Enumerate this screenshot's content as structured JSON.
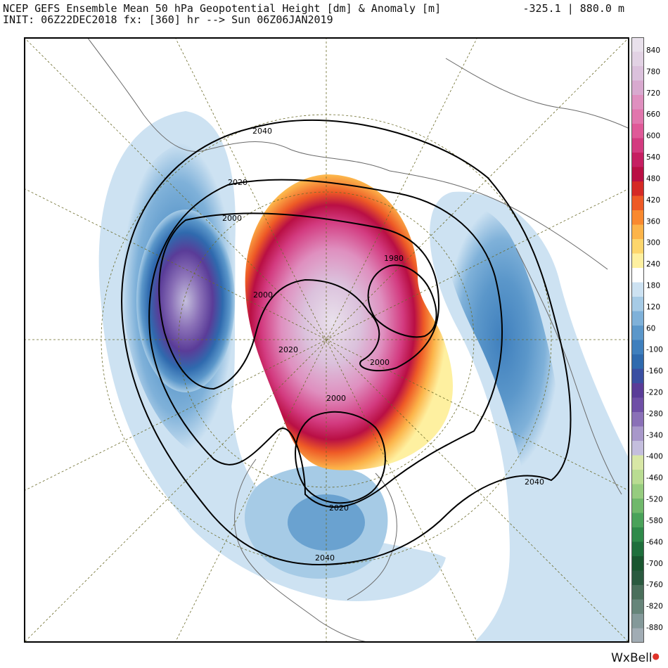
{
  "header": {
    "title": "NCEP GEFS Ensemble Mean 50 hPa Geopotential Height [dm] & Anomaly [m]",
    "init_line": "INIT: 06Z22DEC2018 fx: [360] hr --> Sun 06Z06JAN2019",
    "range": "-325.1 | 880.0 m"
  },
  "contour_labels": [
    "2040",
    "2020",
    "2000",
    "1980",
    "2000",
    "2020",
    "2000",
    "2000",
    "2040",
    "2020",
    "2040"
  ],
  "colorbar": {
    "tick_labels": [
      "840",
      "780",
      "720",
      "660",
      "600",
      "540",
      "480",
      "420",
      "360",
      "300",
      "240",
      "180",
      "120",
      "60",
      "-100",
      "-160",
      "-220",
      "-280",
      "-340",
      "-400",
      "-460",
      "-520",
      "-580",
      "-640",
      "-700",
      "-760",
      "-820",
      "-880"
    ],
    "positive_colors": [
      "#e9e1ec",
      "#e2d2e4",
      "#dbc1dc",
      "#d8a9cf",
      "#df8fbf",
      "#e176ad",
      "#df5998",
      "#d33b80",
      "#c61f62",
      "#b90f44",
      "#d52a26",
      "#ee5a26",
      "#f9892f",
      "#fcb44a",
      "#fdd66c",
      "#fef0a0"
    ],
    "negative_colors": [
      "#cde2f2",
      "#a6cbe6",
      "#7fb1d9",
      "#5b97ca",
      "#3f7fbd",
      "#2f6aae",
      "#3a4fa2",
      "#5a3c98",
      "#6f4fa6",
      "#8a70b7",
      "#a898ca",
      "#c4bedd",
      "#d8e7a6",
      "#b9dc92",
      "#96cc7f",
      "#70b86b",
      "#4aa25a",
      "#2f8a4a",
      "#1f6f3c",
      "#19562f",
      "#2a5a3f",
      "#4a6f5b",
      "#67857a",
      "#84999a",
      "#a1acb4"
    ],
    "accent_brand_dot": "#e0342a"
  },
  "credit": {
    "brand": "WxBell"
  }
}
